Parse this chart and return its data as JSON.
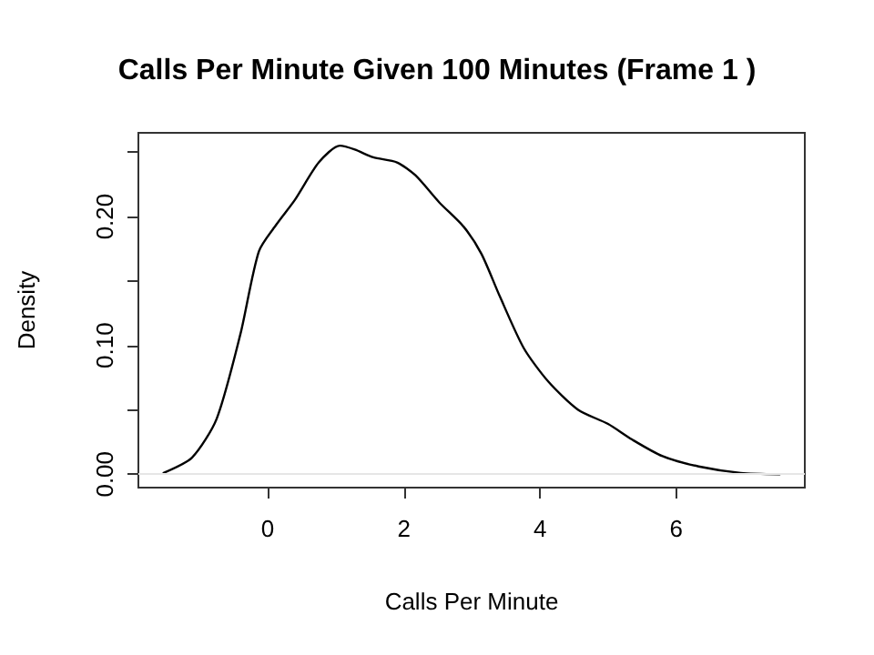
{
  "chart_data": {
    "type": "line",
    "title": "Calls Per Minute Given 100 Minutes (Frame 1 )",
    "xlabel": "Calls Per Minute",
    "ylabel": "Density",
    "x": [
      -1.53,
      -1.11,
      -0.75,
      -0.4,
      -0.13,
      0.13,
      0.4,
      0.75,
      1.06,
      1.28,
      1.55,
      1.9,
      2.17,
      2.52,
      2.88,
      3.14,
      3.41,
      3.76,
      4.12,
      4.56,
      5.0,
      5.35,
      5.8,
      6.33,
      6.95,
      7.52
    ],
    "series": [
      {
        "color": "#000000",
        "values": [
          0.001,
          0.013,
          0.043,
          0.109,
          0.173,
          0.194,
          0.213,
          0.242,
          0.255,
          0.252,
          0.246,
          0.242,
          0.232,
          0.211,
          0.192,
          0.171,
          0.138,
          0.098,
          0.072,
          0.05,
          0.039,
          0.027,
          0.014,
          0.006,
          0.001,
          0.0
        ]
      }
    ],
    "xlim": [
      -1.9,
      7.89
    ],
    "ylim": [
      -0.0104,
      0.265
    ],
    "xticks": [
      0,
      2,
      4,
      6
    ],
    "yticks": [
      {
        "value": 0,
        "label": "0.00"
      },
      {
        "value": 0.05,
        "label": null
      },
      {
        "value": 0.1,
        "label": "0.10"
      },
      {
        "value": 0.15,
        "label": null
      },
      {
        "value": 0.2,
        "label": "0.20"
      },
      {
        "value": 0.25,
        "label": null
      }
    ],
    "ref_lines": [
      {
        "axis": "y",
        "value": 0,
        "color": "#e6e6e6",
        "line_style": "solid"
      }
    ]
  }
}
